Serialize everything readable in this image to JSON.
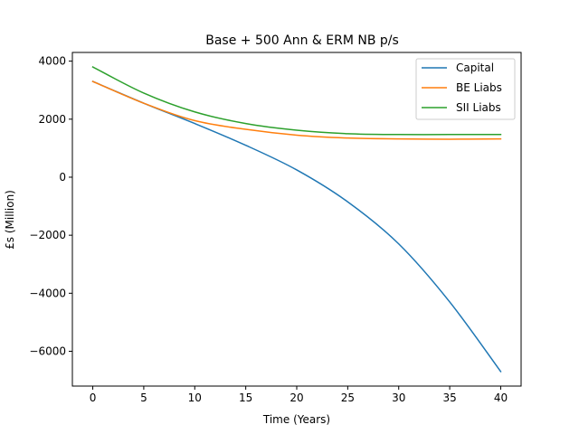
{
  "chart_data": {
    "type": "line",
    "title": "Base + 500 Ann & ERM NB p/s",
    "xlabel": "Time (Years)",
    "ylabel": "£s (Million)",
    "xlim": [
      -2,
      42
    ],
    "ylim": [
      -7200,
      4300
    ],
    "xticks": [
      0,
      5,
      10,
      15,
      20,
      25,
      30,
      35,
      40
    ],
    "yticks": [
      -6000,
      -4000,
      -2000,
      0,
      2000,
      4000
    ],
    "xtick_labels": [
      "0",
      "5",
      "10",
      "15",
      "20",
      "25",
      "30",
      "35",
      "40"
    ],
    "ytick_labels": [
      "−6000",
      "−4000",
      "−2000",
      "0",
      "2000",
      "4000"
    ],
    "grid": false,
    "legend_position": "top-right",
    "x": [
      0,
      5,
      10,
      15,
      20,
      25,
      30,
      35,
      40
    ],
    "series": [
      {
        "name": "Capital",
        "color": "#1f77b4",
        "values": [
          3300,
          2550,
          1850,
          1100,
          250,
          -850,
          -2300,
          -4300,
          -6700
        ]
      },
      {
        "name": "BE Liabs",
        "color": "#ff7f0e",
        "values": [
          3300,
          2550,
          1950,
          1650,
          1450,
          1350,
          1320,
          1310,
          1320
        ]
      },
      {
        "name": "SII Liabs",
        "color": "#2ca02c",
        "values": [
          3800,
          2900,
          2250,
          1850,
          1620,
          1500,
          1470,
          1470,
          1470
        ]
      }
    ]
  }
}
